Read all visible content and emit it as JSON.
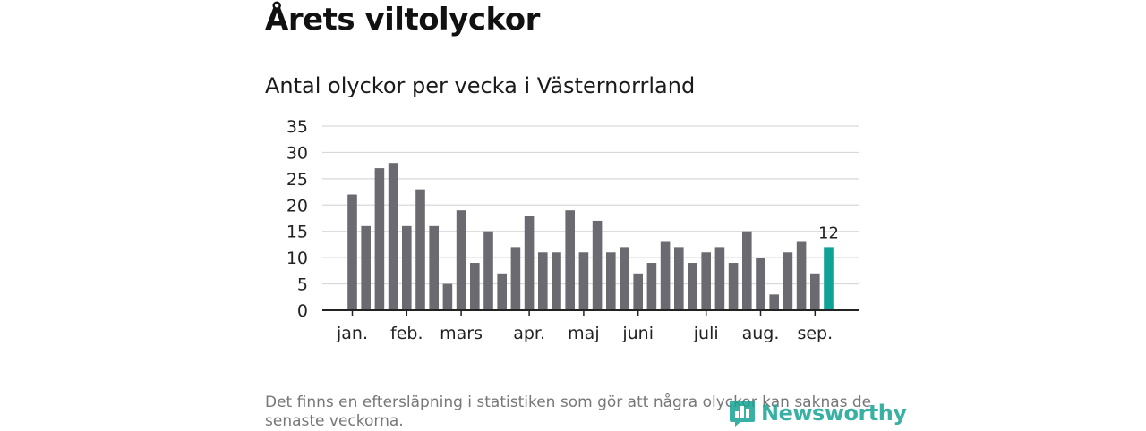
{
  "header": {
    "title": "Årets viltolyckor",
    "subtitle": "Antal olyckor per vecka i Västernorrland"
  },
  "footer": {
    "note": "Det finns en eftersläpning i statistiken som gör att några olyckor kan saknas de senaste veckorna.",
    "brand": "Newsworthy"
  },
  "colors": {
    "bar": "#6b6a70",
    "highlight": "#0fa398",
    "grid": "#d9d9d9",
    "axis": "#222222"
  },
  "chart_data": {
    "type": "bar",
    "title": "Antal olyckor per vecka i Västernorrland",
    "xlabel": "",
    "ylabel": "",
    "ylim": [
      0,
      35
    ],
    "yticks": [
      0,
      5,
      10,
      15,
      20,
      25,
      30,
      35
    ],
    "grid": true,
    "values": [
      22,
      16,
      27,
      28,
      16,
      23,
      16,
      5,
      19,
      9,
      15,
      7,
      12,
      18,
      11,
      11,
      19,
      11,
      17,
      11,
      12,
      7,
      9,
      13,
      12,
      9,
      11,
      12,
      9,
      15,
      10,
      3,
      11,
      13,
      7,
      12
    ],
    "month_ticks": [
      {
        "label": "jan.",
        "week": 1
      },
      {
        "label": "feb.",
        "week": 5
      },
      {
        "label": "mars",
        "week": 9
      },
      {
        "label": "apr.",
        "week": 14
      },
      {
        "label": "maj",
        "week": 18
      },
      {
        "label": "juni",
        "week": 22
      },
      {
        "label": "juli",
        "week": 27
      },
      {
        "label": "aug.",
        "week": 31
      },
      {
        "label": "sep.",
        "week": 35
      }
    ],
    "highlight_index": 35,
    "annotations": [
      {
        "index": 35,
        "text": "12"
      }
    ]
  }
}
